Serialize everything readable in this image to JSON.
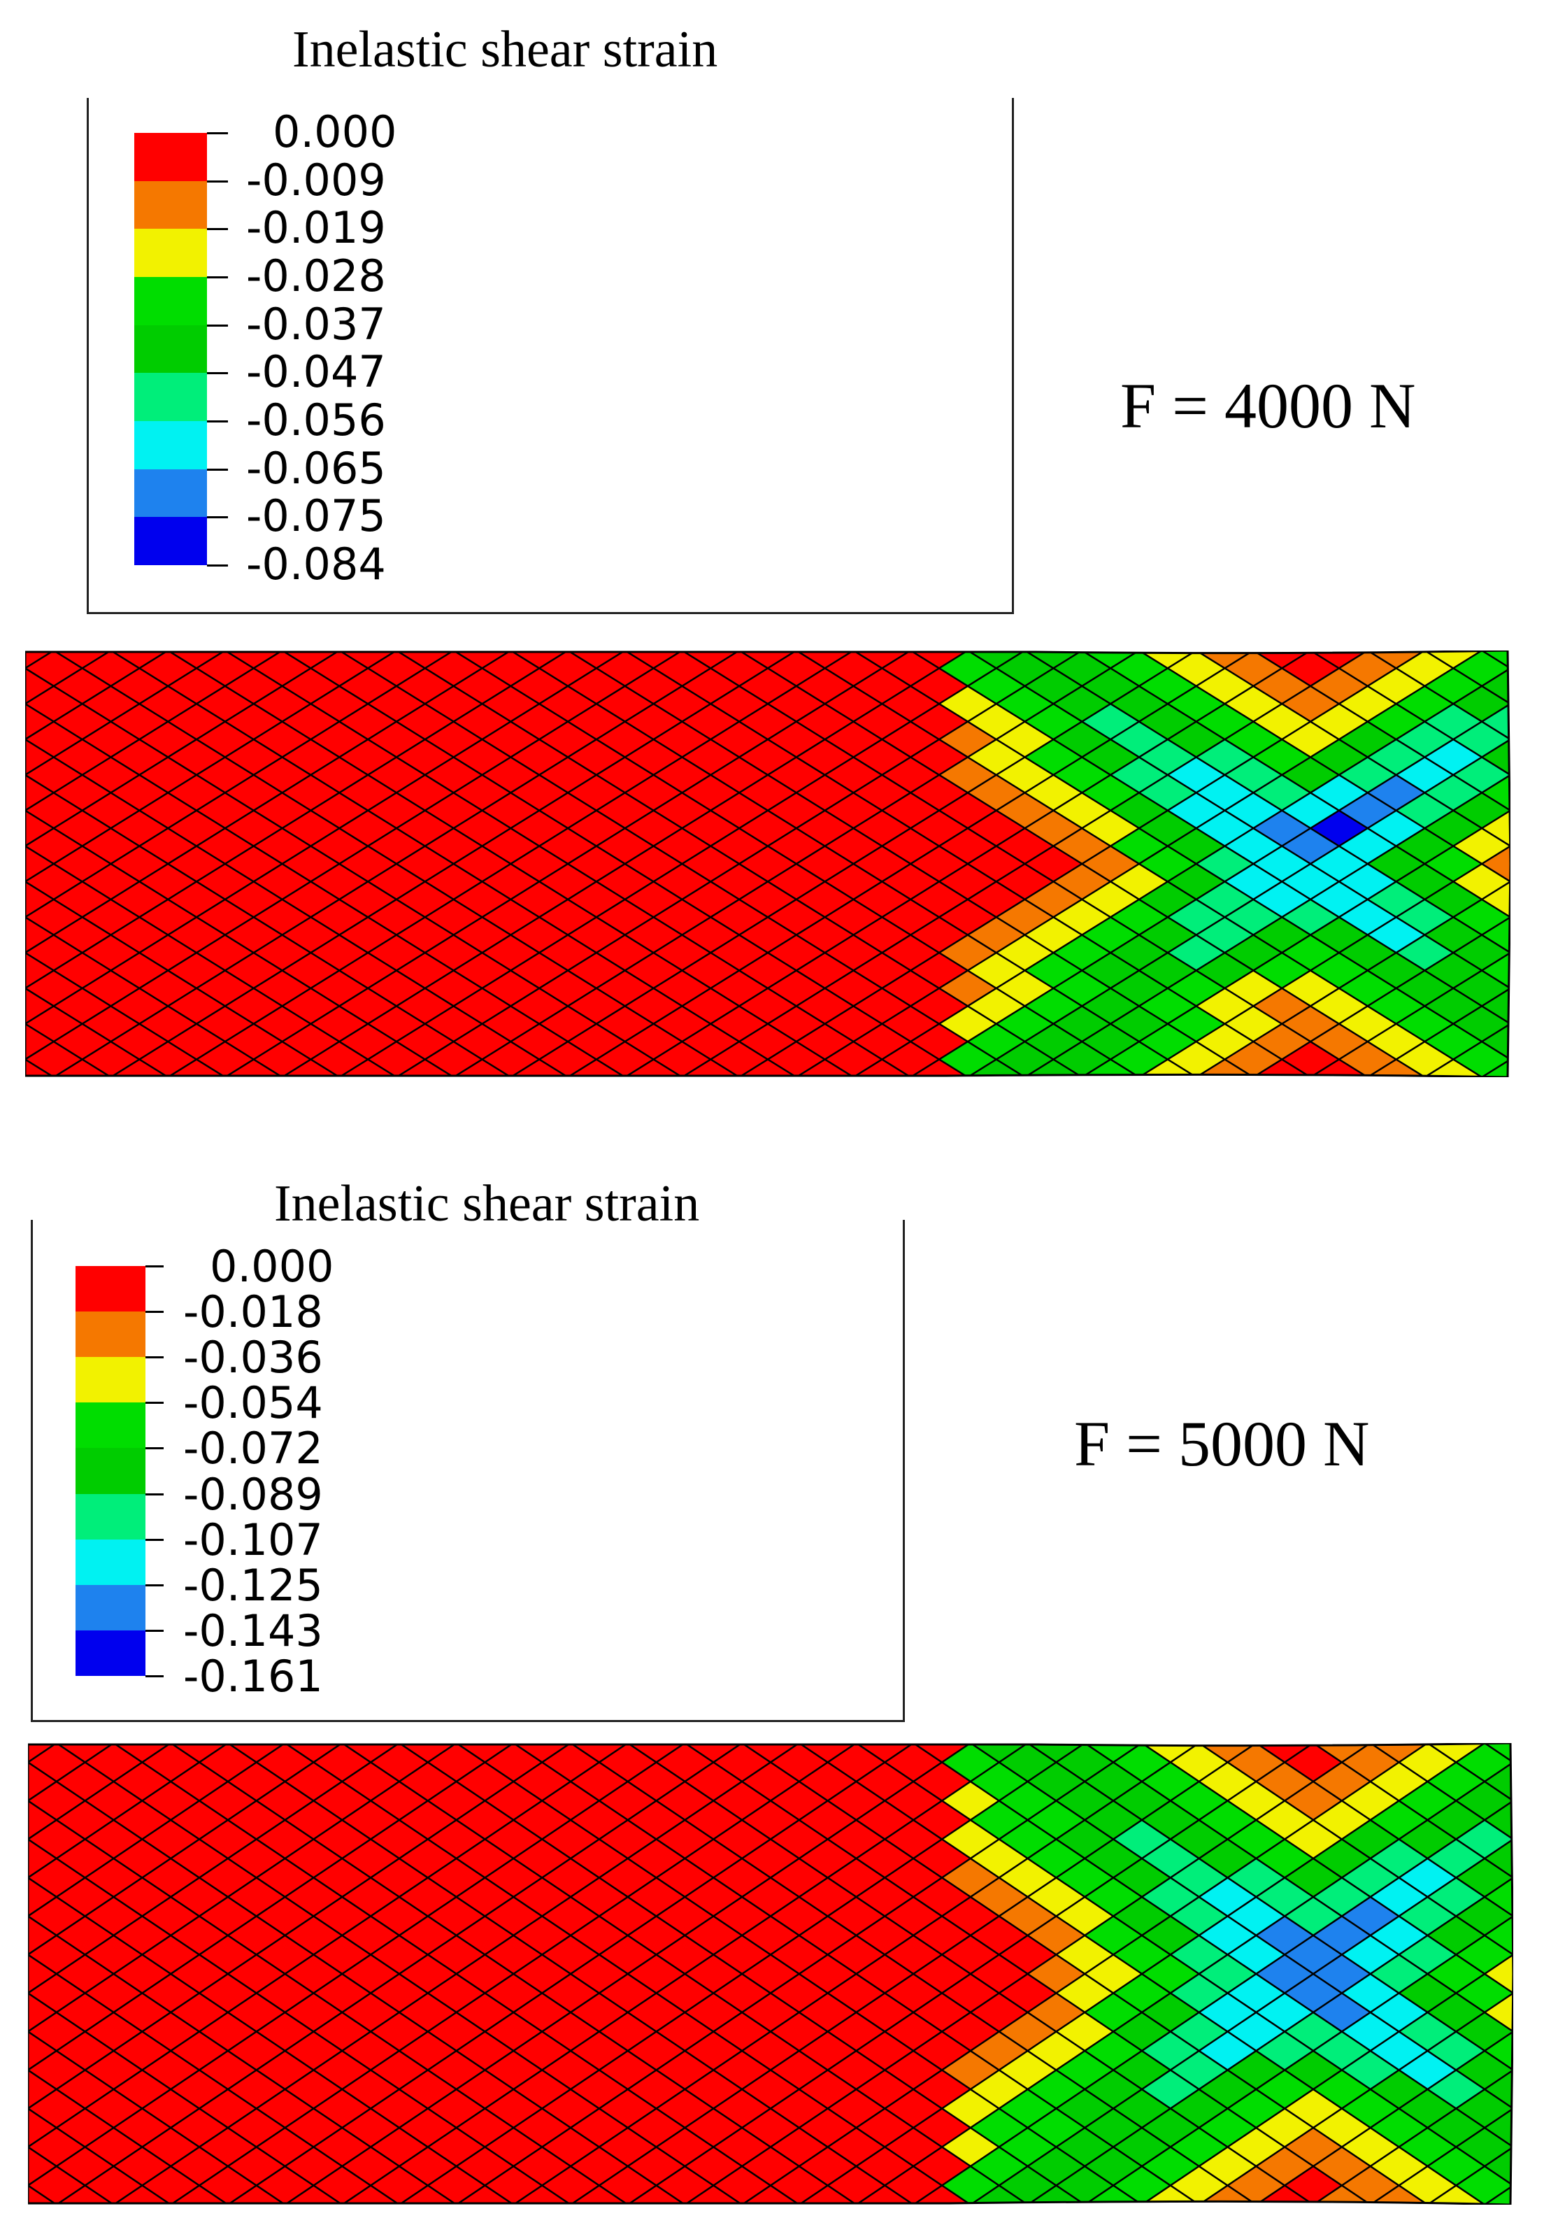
{
  "panels": [
    {
      "legend_title": "Inelastic shear strain",
      "legend_labels": [
        "0.000",
        "-0.009",
        "-0.019",
        "-0.028",
        "-0.037",
        "-0.047",
        "-0.056",
        "-0.065",
        "-0.075",
        "-0.084"
      ],
      "force_label": "F = 4000 N"
    },
    {
      "legend_title": "Inelastic shear strain",
      "legend_labels": [
        "0.000",
        "-0.018",
        "-0.036",
        "-0.054",
        "-0.072",
        "-0.089",
        "-0.107",
        "-0.125",
        "-0.143",
        "-0.161"
      ],
      "force_label": "F = 5000 N"
    }
  ],
  "colors": {
    "ramp": [
      "#ff0000",
      "#f57800",
      "#f2f200",
      "#00dd00",
      "#00cc00",
      "#00ee7a",
      "#00f2f2",
      "#1e82ee",
      "#0000ee"
    ],
    "mesh_line": "#000000"
  }
}
